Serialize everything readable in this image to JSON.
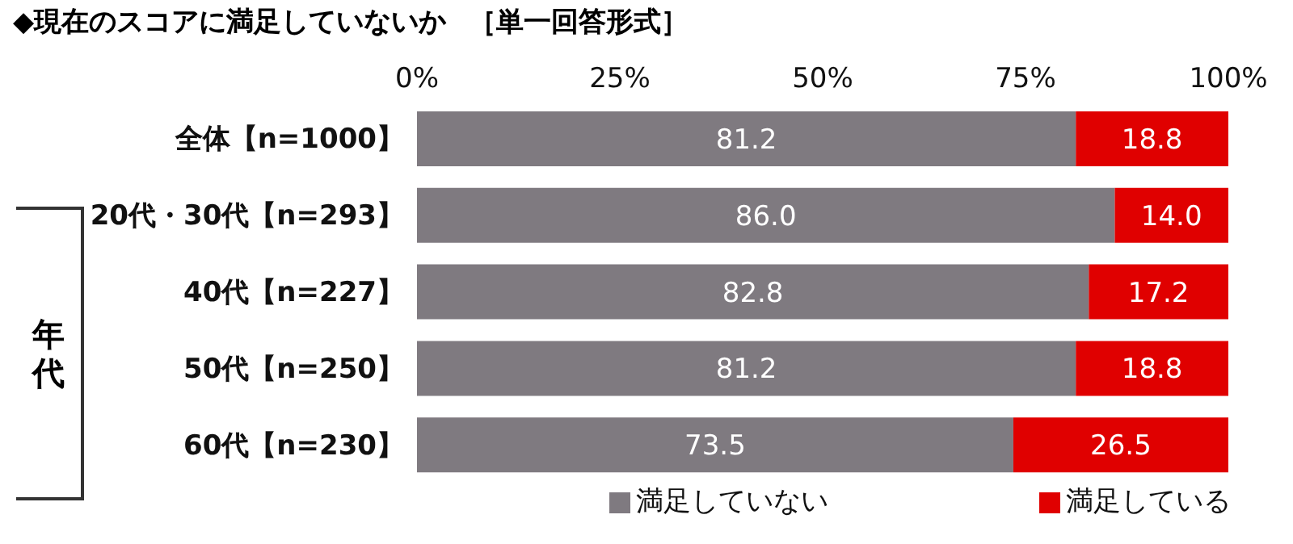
{
  "chart_data": {
    "type": "bar",
    "orientation": "horizontal",
    "stacked": true,
    "title": "◆現在のスコアに満足していないか",
    "subtitle": "［単一回答形式］",
    "categories": [
      "全体【n=1000】",
      "20代・30代【n=293】",
      "40代【n=227】",
      "50代【n=250】",
      "60代【n=230】"
    ],
    "series": [
      {
        "name": "満足していない",
        "color": "#7f7a80",
        "values": [
          81.2,
          86.0,
          82.8,
          81.2,
          73.5
        ],
        "value_labels": [
          "81.2",
          "86.0",
          "82.8",
          "81.2",
          "73.5"
        ]
      },
      {
        "name": "満足している",
        "color": "#e00000",
        "values": [
          18.8,
          14.0,
          17.2,
          18.8,
          26.5
        ],
        "value_labels": [
          "18.8",
          "14.0",
          "17.2",
          "18.8",
          "26.5"
        ]
      }
    ],
    "xlim": [
      0,
      100
    ],
    "xticks": [
      {
        "value": 0,
        "label": "0%"
      },
      {
        "value": 25,
        "label": "25%"
      },
      {
        "value": 50,
        "label": "50%"
      },
      {
        "value": 75,
        "label": "75%"
      },
      {
        "value": 100,
        "label": "100%"
      }
    ],
    "legend": "bottom",
    "grid": false,
    "annotations": [
      "年代"
    ]
  }
}
